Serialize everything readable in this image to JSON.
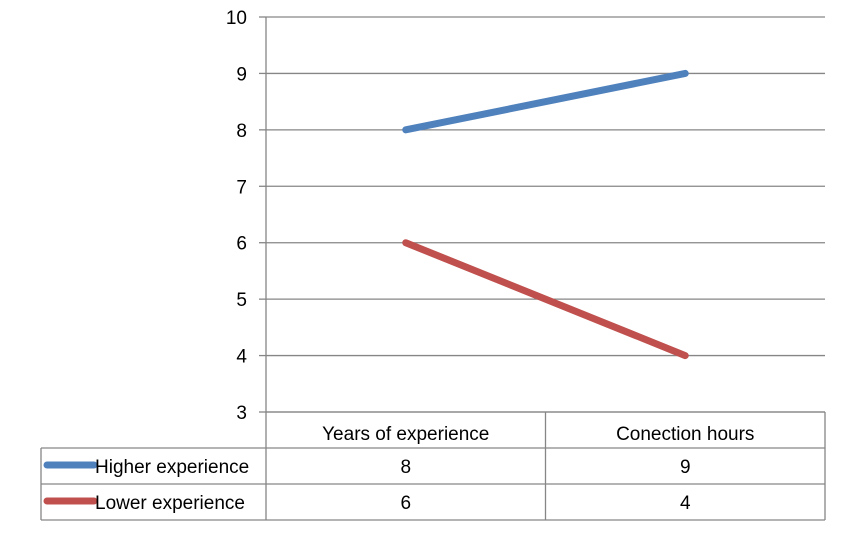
{
  "chart_data": {
    "type": "line",
    "categories": [
      "Years of experience",
      "Conection hours"
    ],
    "series": [
      {
        "name": "Higher experience",
        "values": [
          8,
          9
        ],
        "color": "#4f81bd"
      },
      {
        "name": "Lower experience",
        "values": [
          6,
          4
        ],
        "color": "#c0504d"
      }
    ],
    "ylim": [
      3,
      10
    ],
    "yticks": [
      3,
      4,
      5,
      6,
      7,
      8,
      9,
      10
    ],
    "grid": true,
    "legend": "data-table-left",
    "data_table": true
  }
}
